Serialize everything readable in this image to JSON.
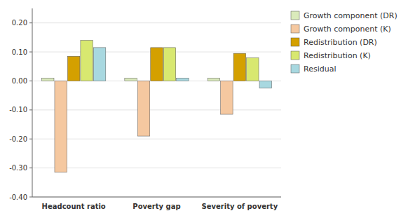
{
  "chart_data": {
    "type": "bar",
    "categories": [
      "Headcount ratio",
      "Poverty gap",
      "Severity of poverty"
    ],
    "series": [
      {
        "name": "Growth component (DR)",
        "color": "#daeabb",
        "values": [
          0.01,
          0.01,
          0.01
        ]
      },
      {
        "name": "Growth component (K)",
        "color": "#f5c8a0",
        "values": [
          -0.315,
          -0.19,
          -0.115
        ]
      },
      {
        "name": "Redistribution (DR)",
        "color": "#d4a000",
        "values": [
          0.085,
          0.115,
          0.095
        ]
      },
      {
        "name": "Redistribution (K)",
        "color": "#d8e870",
        "values": [
          0.14,
          0.115,
          0.08
        ]
      },
      {
        "name": "Residual",
        "color": "#a8d8e0",
        "values": [
          0.115,
          0.01,
          -0.025
        ]
      }
    ],
    "ylim": [
      -0.4,
      0.25
    ],
    "yticks": [
      {
        "value": -0.4,
        "label": "-0.40"
      },
      {
        "value": -0.3,
        "label": "-0.30"
      },
      {
        "value": -0.2,
        "label": "-0.20"
      },
      {
        "value": -0.1,
        "label": "-0.10"
      },
      {
        "value": 0.0,
        "label": "0.00"
      },
      {
        "value": 0.1,
        "label": "0.10"
      },
      {
        "value": 0.2,
        "label": "0.20"
      }
    ],
    "grid": true,
    "legend": "right"
  }
}
